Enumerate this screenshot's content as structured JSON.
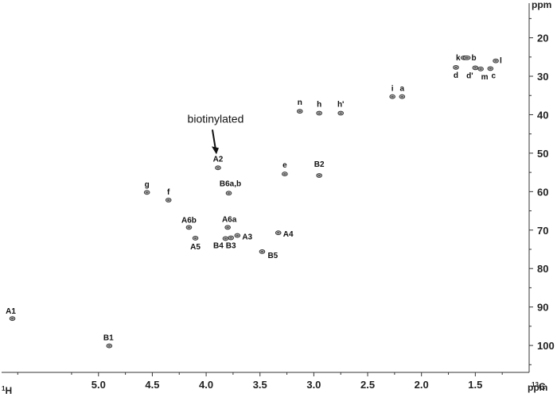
{
  "chart_data": {
    "type": "scatter",
    "title": "",
    "x_axis": {
      "unit": "ppm",
      "nucleus_prefix": "1",
      "nucleus": "H",
      "range": [
        5.9,
        1.0
      ],
      "ticks": [
        5.0,
        4.5,
        4.0,
        3.5,
        3.0,
        2.5,
        2.0,
        1.5
      ],
      "tick_labels": [
        "5.0",
        "4.5",
        "4.0",
        "3.5",
        "3.0",
        "2.5",
        "2.0",
        "1.5"
      ]
    },
    "y_axis": {
      "unit": "ppm",
      "nucleus_prefix": "13",
      "nucleus": "C",
      "range": [
        11,
        107
      ],
      "ticks": [
        20,
        30,
        40,
        50,
        60,
        70,
        80,
        90,
        100
      ],
      "tick_labels": [
        "20",
        "30",
        "40",
        "50",
        "60",
        "70",
        "80",
        "90",
        "100"
      ]
    },
    "grid": false,
    "legend": "none",
    "peaks": [
      {
        "label": "A1",
        "x": 5.8,
        "y": 93.0
      },
      {
        "label": "B1",
        "x": 4.9,
        "y": 100.1
      },
      {
        "label": "A2",
        "x": 3.89,
        "y": 53.8
      },
      {
        "label": "B6a,b",
        "x": 3.79,
        "y": 60.4
      },
      {
        "label": "g",
        "x": 4.55,
        "y": 60.2
      },
      {
        "label": "f",
        "x": 4.35,
        "y": 62.2
      },
      {
        "label": "A6b",
        "x": 4.16,
        "y": 69.3
      },
      {
        "label": "A6a",
        "x": 3.8,
        "y": 69.3
      },
      {
        "label": "A5",
        "x": 4.1,
        "y": 72.1
      },
      {
        "label": "B4",
        "x": 3.82,
        "y": 72.2
      },
      {
        "label": "B3",
        "x": 3.77,
        "y": 72.0
      },
      {
        "label": "A3",
        "x": 3.71,
        "y": 71.4
      },
      {
        "label": "A4",
        "x": 3.33,
        "y": 70.7
      },
      {
        "label": "B5",
        "x": 3.48,
        "y": 75.6
      },
      {
        "label": "e",
        "x": 3.27,
        "y": 55.4
      },
      {
        "label": "B2",
        "x": 2.95,
        "y": 55.8
      },
      {
        "label": "n",
        "x": 3.13,
        "y": 39.1
      },
      {
        "label": "h",
        "x": 2.95,
        "y": 39.6
      },
      {
        "label": "h'",
        "x": 2.75,
        "y": 39.6
      },
      {
        "label": "i",
        "x": 2.27,
        "y": 35.3
      },
      {
        "label": "a",
        "x": 2.18,
        "y": 35.3
      },
      {
        "label": "k",
        "x": 1.6,
        "y": 25.2
      },
      {
        "label": "b",
        "x": 1.58,
        "y": 25.2
      },
      {
        "label": "l",
        "x": 1.31,
        "y": 26.0
      },
      {
        "label": "d",
        "x": 1.68,
        "y": 27.7
      },
      {
        "label": "d'",
        "x": 1.5,
        "y": 27.8
      },
      {
        "label": "m",
        "x": 1.45,
        "y": 28.1
      },
      {
        "label": "c",
        "x": 1.36,
        "y": 28.0
      }
    ],
    "annotations": [
      {
        "text": "biotinylated",
        "points_to": "A2"
      }
    ]
  }
}
